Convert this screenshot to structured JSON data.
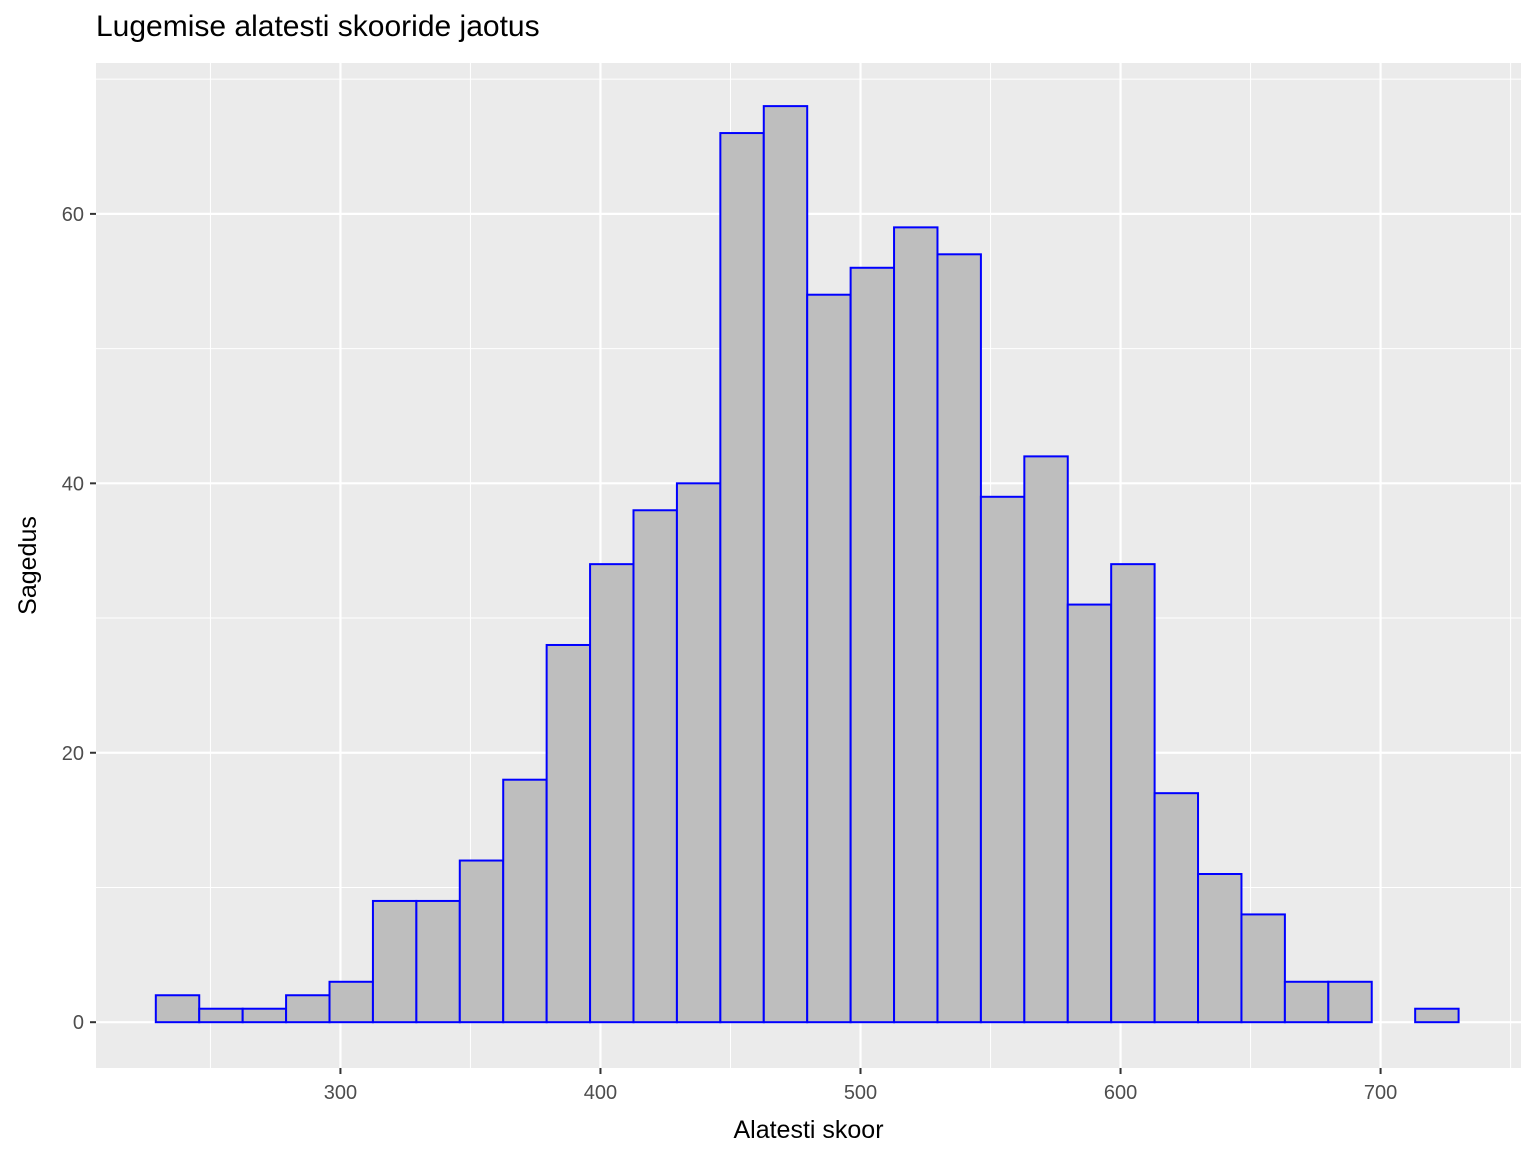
{
  "chart_data": {
    "type": "bar",
    "subtype": "histogram",
    "title": "Lugemise alatesti skooride jaotus",
    "xlabel": "Alatesti skoor",
    "ylabel": "Sagedus",
    "xlim": [
      206,
      754
    ],
    "ylim": [
      -3.4,
      71.2
    ],
    "x_ticks": [
      300,
      400,
      500,
      600,
      700
    ],
    "y_ticks": [
      0,
      20,
      40,
      60
    ],
    "bin_width": 16.7,
    "bin_start": 229,
    "values": [
      2,
      1,
      1,
      2,
      3,
      9,
      9,
      12,
      18,
      28,
      34,
      38,
      40,
      66,
      68,
      54,
      56,
      59,
      57,
      39,
      42,
      31,
      34,
      17,
      11,
      8,
      3,
      3,
      0,
      1
    ],
    "grid": true,
    "bar_fill": "#bebebe",
    "bar_outline": "#0000ff",
    "panel_background": "#ebebeb"
  }
}
